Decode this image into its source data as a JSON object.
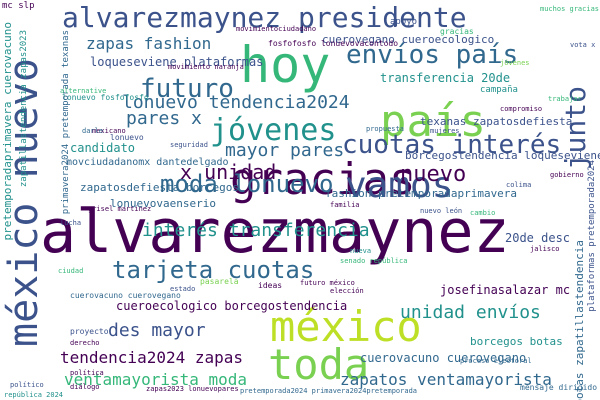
{
  "palette": {
    "background": "#ffffff",
    "dark_purple": "#440154",
    "indigo": "#3b528b",
    "slate": "#31688e",
    "teal": "#21918c",
    "green": "#35b779",
    "lime": "#7ad151",
    "yellow": "#bddf26"
  },
  "words": [
    {
      "text": "alvarezmaynez"
    },
    {
      "text": "méxico nuevo"
    },
    {
      "text": "alvarezmaynez presidente"
    },
    {
      "text": "hoy"
    },
    {
      "text": "gracias"
    },
    {
      "text": "país"
    },
    {
      "text": "méxico"
    },
    {
      "text": "toda"
    },
    {
      "text": "vamos"
    },
    {
      "text": "jóvenes"
    },
    {
      "text": "futuro"
    },
    {
      "text": "cuotas interés"
    },
    {
      "text": "envíos país"
    },
    {
      "text": "junto"
    },
    {
      "text": "moda lonuevo"
    },
    {
      "text": "tarjeta cuotas"
    },
    {
      "text": "nuevo"
    },
    {
      "text": "x unidad"
    },
    {
      "text": "mayor pares"
    },
    {
      "text": "pares x"
    },
    {
      "text": "lonuevo tendencia2024"
    },
    {
      "text": "zapas fashion"
    },
    {
      "text": "interés transferencia"
    },
    {
      "text": "unidad envíos"
    },
    {
      "text": "des mayor"
    },
    {
      "text": "tendencia2024 zapas"
    },
    {
      "text": "ventamayorista moda"
    },
    {
      "text": "zapatos ventamayorista"
    },
    {
      "text": "cuerovacuno cuerovegano"
    },
    {
      "text": "cuerovegano cueroecologico"
    },
    {
      "text": "loqueseviene plataformas"
    },
    {
      "text": "transferencia 20de"
    },
    {
      "text": "texanas zapatosdefiesta"
    },
    {
      "text": "borcegostendencia loqueseviene"
    },
    {
      "text": "lonuevovaenserio"
    },
    {
      "text": "zapatosdefiesta borcegos"
    },
    {
      "text": "fashion pretemporadaprimavera"
    },
    {
      "text": "josefinasalazar mc"
    },
    {
      "text": "borcegos botas"
    },
    {
      "text": "20de desc"
    },
    {
      "text": "pretemporadaprimavera cuerovacuno"
    },
    {
      "text": "zapatillastendencia zapas2023"
    },
    {
      "text": "botas zapatillastendencia"
    },
    {
      "text": "plataformas pretemporada2024"
    },
    {
      "text": "lonuevo fosfofosfo"
    },
    {
      "text": "fosfofosfo lonuevovacontodo"
    },
    {
      "text": "candidato"
    },
    {
      "text": "movimientociudadano"
    },
    {
      "text": "mc slp"
    },
    {
      "text": "primavera2024 pretemporada texanas"
    },
    {
      "text": "movciudadanomx dantedelgado"
    },
    {
      "text": "cueroecologico borcegostendencia"
    },
    {
      "text": "cuerovacuno cuerovegano"
    },
    {
      "text": "mensaje dirigido"
    },
    {
      "text": "pasarela"
    },
    {
      "text": "gracias"
    },
    {
      "text": "apoyo"
    },
    {
      "text": "campaña"
    },
    {
      "text": "muchos gracias"
    },
    {
      "text": "jóvenes"
    },
    {
      "text": "seguridad"
    },
    {
      "text": "mexicano"
    },
    {
      "text": "darle"
    },
    {
      "text": "lonuevo"
    },
    {
      "text": "alternative"
    },
    {
      "text": "propuesta"
    },
    {
      "text": "zapas2023 lonuevopares"
    },
    {
      "text": "pretemporada2024 primavera2024pretemporada"
    },
    {
      "text": "senado república"
    },
    {
      "text": "elección"
    },
    {
      "text": "proyecto"
    },
    {
      "text": "derecho"
    },
    {
      "text": "ciudad"
    },
    {
      "text": "diálogo"
    },
    {
      "text": "político"
    },
    {
      "text": "nuevo león"
    },
    {
      "text": "jalisco"
    },
    {
      "text": "proceso electoral"
    },
    {
      "text": "república 2024"
    },
    {
      "text": "grisel martinez"
    },
    {
      "text": "movimiento naranja"
    },
    {
      "text": "trabajar"
    },
    {
      "text": "compromiso"
    },
    {
      "text": "familia"
    },
    {
      "text": "colima"
    },
    {
      "text": "mujeres"
    },
    {
      "text": "cambio"
    },
    {
      "text": "nueva"
    },
    {
      "text": "política"
    },
    {
      "text": "vota x"
    },
    {
      "text": "gobierno"
    },
    {
      "text": "estado"
    },
    {
      "text": "lucha"
    },
    {
      "text": "futuro méxico"
    },
    {
      "text": "ideas"
    }
  ]
}
